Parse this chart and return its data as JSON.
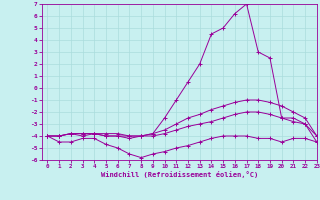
{
  "xlabel": "Windchill (Refroidissement éolien,°C)",
  "bg_color": "#c8f0f0",
  "line_color": "#990099",
  "grid_color": "#aadddd",
  "xlim": [
    -0.5,
    23
  ],
  "ylim": [
    -6,
    7
  ],
  "xticks": [
    0,
    1,
    2,
    3,
    4,
    5,
    6,
    7,
    8,
    9,
    10,
    11,
    12,
    13,
    14,
    15,
    16,
    17,
    18,
    19,
    20,
    21,
    22,
    23
  ],
  "yticks": [
    -6,
    -5,
    -4,
    -3,
    -2,
    -1,
    0,
    1,
    2,
    3,
    4,
    5,
    6,
    7
  ],
  "x": [
    0,
    1,
    2,
    3,
    4,
    5,
    6,
    7,
    8,
    9,
    10,
    11,
    12,
    13,
    14,
    15,
    16,
    17,
    18,
    19,
    20,
    21,
    22,
    23
  ],
  "series": [
    [
      -4,
      -4.5,
      -4.5,
      -4.2,
      -4.2,
      -4.7,
      -5.0,
      -5.5,
      -5.8,
      -5.5,
      -5.3,
      -5.0,
      -4.8,
      -4.5,
      -4.2,
      -4.0,
      -4.0,
      -4.0,
      -4.2,
      -4.2,
      -4.5,
      -4.2,
      -4.2,
      -4.5
    ],
    [
      -4,
      -4.0,
      -3.8,
      -4.0,
      -3.8,
      -4.0,
      -4.0,
      -4.2,
      -4.0,
      -3.8,
      -2.5,
      -1.0,
      0.5,
      2.0,
      4.5,
      5.0,
      6.2,
      7.0,
      3.0,
      2.5,
      -2.5,
      -2.5,
      -3.0,
      -4.5
    ],
    [
      -4,
      -4.0,
      -3.8,
      -3.8,
      -3.8,
      -4.0,
      -4.0,
      -4.0,
      -4.0,
      -3.8,
      -3.5,
      -3.0,
      -2.5,
      -2.2,
      -1.8,
      -1.5,
      -1.2,
      -1.0,
      -1.0,
      -1.2,
      -1.5,
      -2.0,
      -2.5,
      -4.0
    ],
    [
      -4,
      -4.0,
      -3.8,
      -3.8,
      -3.8,
      -3.8,
      -3.8,
      -4.0,
      -4.0,
      -4.0,
      -3.8,
      -3.5,
      -3.2,
      -3.0,
      -2.8,
      -2.5,
      -2.2,
      -2.0,
      -2.0,
      -2.2,
      -2.5,
      -2.8,
      -3.0,
      -4.0
    ]
  ]
}
